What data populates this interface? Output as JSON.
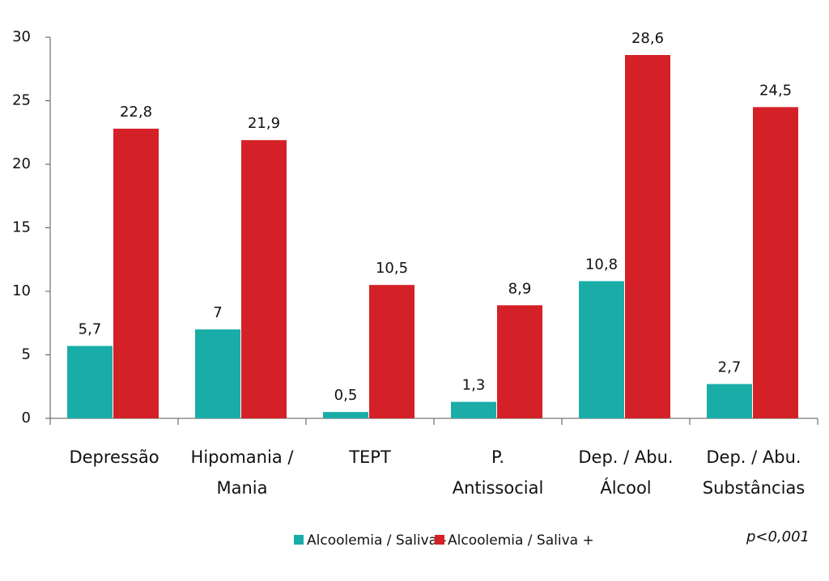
{
  "chart_data": {
    "type": "bar",
    "categories": [
      [
        "Depressão"
      ],
      [
        "Hipomania /",
        "Mania"
      ],
      [
        "TEPT"
      ],
      [
        "P.",
        "Antissocial"
      ],
      [
        "Dep. / Abu.",
        "Álcool"
      ],
      [
        "Dep. / Abu.",
        "Substâncias"
      ]
    ],
    "series": [
      {
        "name": "Alcoolemia / Saliva -",
        "color": "#1aada8",
        "values": [
          5.7,
          7,
          0.5,
          1.3,
          10.8,
          2.7
        ],
        "value_labels": [
          "5,7",
          "7",
          "0,5",
          "1,3",
          "10,8",
          "2,7"
        ]
      },
      {
        "name": "Alcoolemia / Saliva +",
        "color": "#d42127",
        "values": [
          22.8,
          21.9,
          10.5,
          8.9,
          28.6,
          24.5
        ],
        "value_labels": [
          "22,8",
          "21,9",
          "10,5",
          "8,9",
          "28,6",
          "24,5"
        ]
      }
    ],
    "ylim": [
      0,
      30
    ],
    "yticks": [
      0,
      5,
      10,
      15,
      20,
      25,
      30
    ],
    "annotation": "p<0,001"
  }
}
